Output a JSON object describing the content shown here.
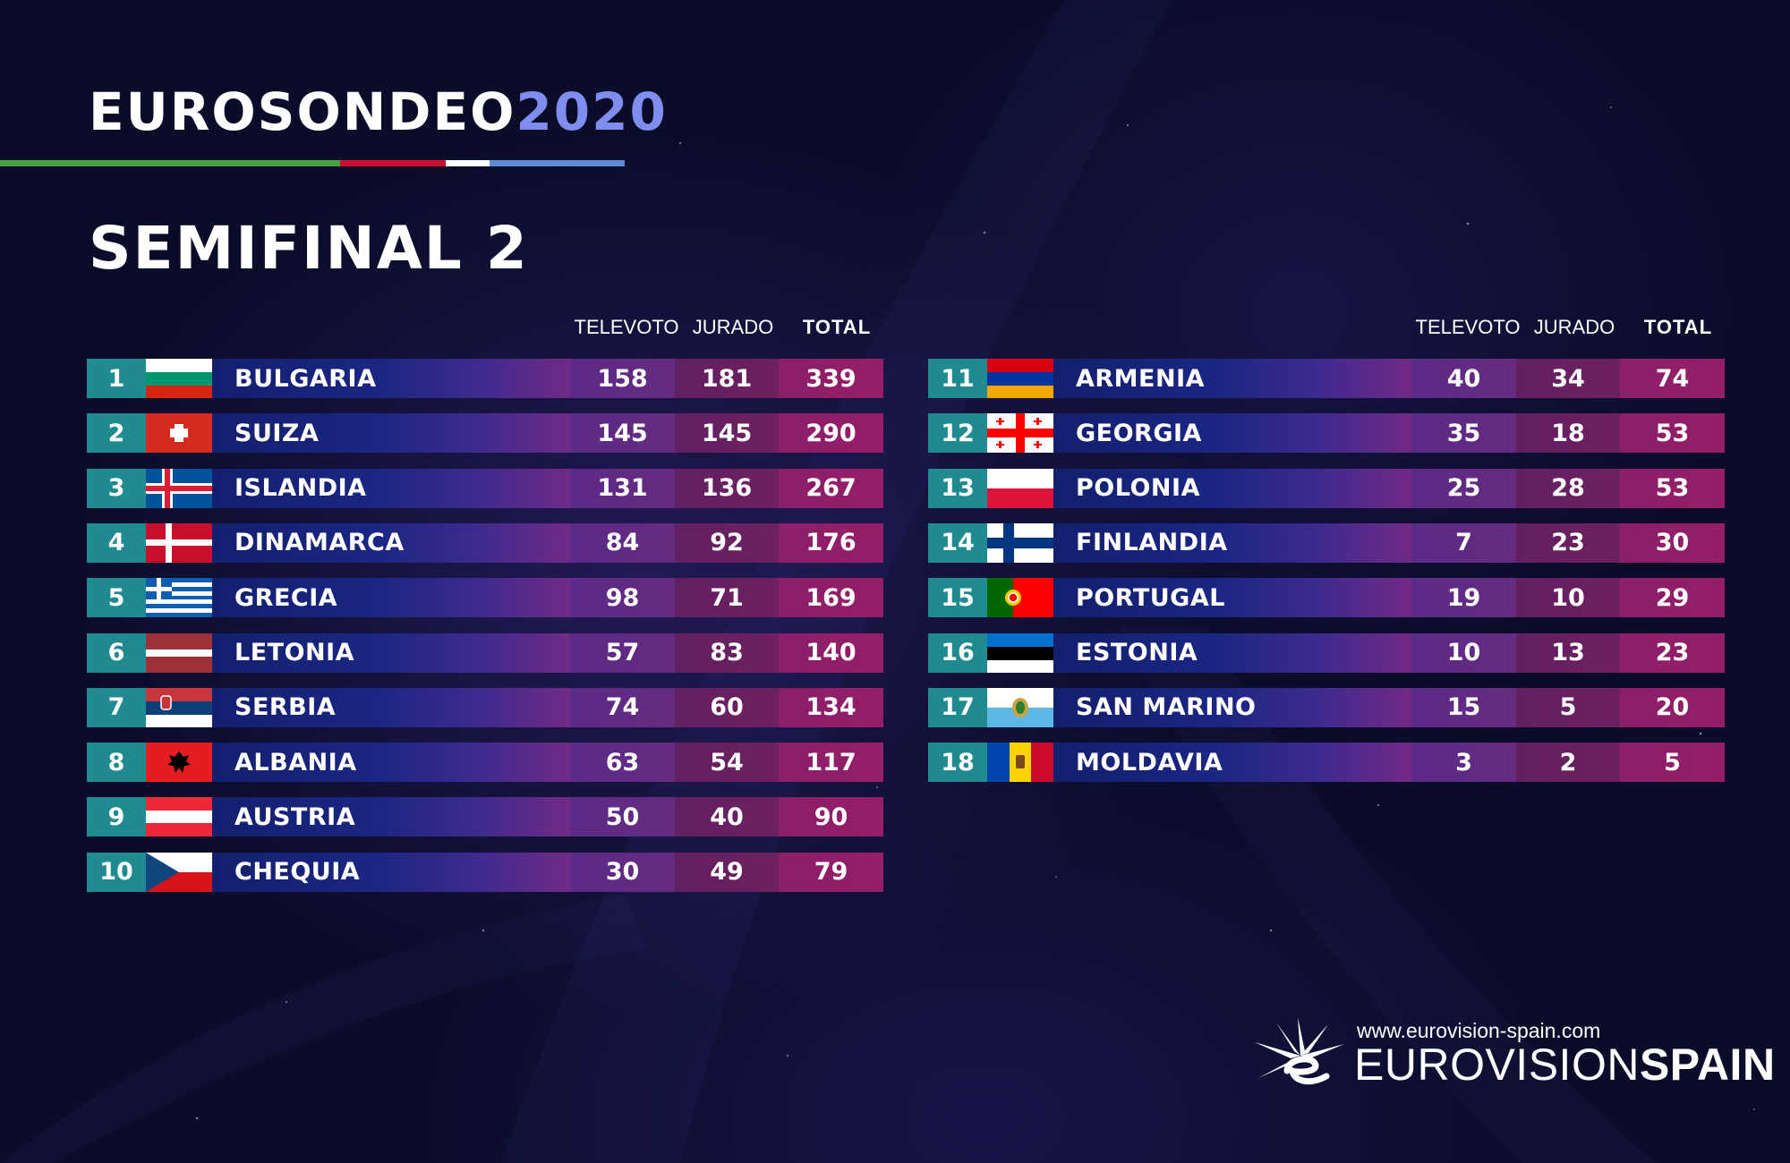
{
  "header": {
    "brand": "EUROSONDEO",
    "year": "2020",
    "stripe_colors": [
      "#4aa043",
      "#c8102e",
      "#ffffff",
      "#5b8bd6"
    ],
    "semifinal": "SEMIFINAL 2"
  },
  "columns": {
    "televoto": "TELEVOTO",
    "jurado": "JURADO",
    "total": "TOTAL"
  },
  "left_rows": [
    {
      "pos": "1",
      "flag": "bulgaria-flag",
      "country": "BULGARIA",
      "televoto": "158",
      "jurado": "181",
      "total": "339"
    },
    {
      "pos": "2",
      "flag": "switzerland-flag",
      "country": "SUIZA",
      "televoto": "145",
      "jurado": "145",
      "total": "290"
    },
    {
      "pos": "3",
      "flag": "iceland-flag",
      "country": "ISLANDIA",
      "televoto": "131",
      "jurado": "136",
      "total": "267"
    },
    {
      "pos": "4",
      "flag": "denmark-flag",
      "country": "DINAMARCA",
      "televoto": "84",
      "jurado": "92",
      "total": "176"
    },
    {
      "pos": "5",
      "flag": "greece-flag",
      "country": "GRECIA",
      "televoto": "98",
      "jurado": "71",
      "total": "169"
    },
    {
      "pos": "6",
      "flag": "latvia-flag",
      "country": "LETONIA",
      "televoto": "57",
      "jurado": "83",
      "total": "140"
    },
    {
      "pos": "7",
      "flag": "serbia-flag",
      "country": "SERBIA",
      "televoto": "74",
      "jurado": "60",
      "total": "134"
    },
    {
      "pos": "8",
      "flag": "albania-flag",
      "country": "ALBANIA",
      "televoto": "63",
      "jurado": "54",
      "total": "117"
    },
    {
      "pos": "9",
      "flag": "austria-flag",
      "country": "AUSTRIA",
      "televoto": "50",
      "jurado": "40",
      "total": "90"
    },
    {
      "pos": "10",
      "flag": "czechia-flag",
      "country": "CHEQUIA",
      "televoto": "30",
      "jurado": "49",
      "total": "79"
    }
  ],
  "right_rows": [
    {
      "pos": "11",
      "flag": "armenia-flag",
      "country": "ARMENIA",
      "televoto": "40",
      "jurado": "34",
      "total": "74"
    },
    {
      "pos": "12",
      "flag": "georgia-flag",
      "country": "GEORGIA",
      "televoto": "35",
      "jurado": "18",
      "total": "53"
    },
    {
      "pos": "13",
      "flag": "poland-flag",
      "country": "POLONIA",
      "televoto": "25",
      "jurado": "28",
      "total": "53"
    },
    {
      "pos": "14",
      "flag": "finland-flag",
      "country": "FINLANDIA",
      "televoto": "7",
      "jurado": "23",
      "total": "30"
    },
    {
      "pos": "15",
      "flag": "portugal-flag",
      "country": "PORTUGAL",
      "televoto": "19",
      "jurado": "10",
      "total": "29"
    },
    {
      "pos": "16",
      "flag": "estonia-flag",
      "country": "ESTONIA",
      "televoto": "10",
      "jurado": "13",
      "total": "23"
    },
    {
      "pos": "17",
      "flag": "san-marino-flag",
      "country": "SAN MARINO",
      "televoto": "15",
      "jurado": "5",
      "total": "20"
    },
    {
      "pos": "18",
      "flag": "moldova-flag",
      "country": "MOLDAVIA",
      "televoto": "3",
      "jurado": "2",
      "total": "5"
    }
  ],
  "footer": {
    "url": "www.eurovision-spain.com",
    "brand_light": "EUROVISION",
    "brand_bold": "SPAIN",
    "logo": "eurovision-spain-logo-icon"
  }
}
